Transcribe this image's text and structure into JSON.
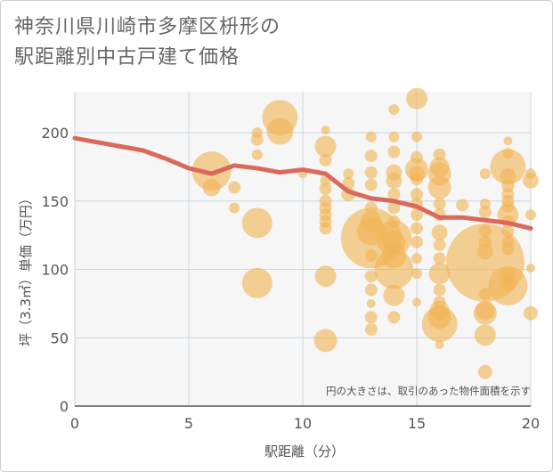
{
  "title": {
    "line1": "神奈川県川崎市多摩区枡形の",
    "line2": "駅距離別中古戸建て価格"
  },
  "note": "円の大きさは、取引のあった物件面積を示す",
  "chart_data": {
    "type": "scatter",
    "xlabel": "駅距離（分）",
    "ylabel": "坪（3.3㎡）単価（万円）",
    "xlim": [
      0,
      20
    ],
    "ylim": [
      0,
      230
    ],
    "xticks": [
      "0",
      "5",
      "10",
      "15",
      "20"
    ],
    "yticks": [
      "0",
      "50",
      "100",
      "150",
      "200"
    ],
    "grid": true,
    "colors": {
      "bubble": "#f0b455",
      "line": "#d9695a",
      "grid": "#c9d7e0",
      "plot_bg": "#f6f6f6"
    },
    "points": [
      {
        "x": 6,
        "y": 172,
        "s": 22
      },
      {
        "x": 6,
        "y": 160,
        "s": 10
      },
      {
        "x": 7,
        "y": 160,
        "s": 7
      },
      {
        "x": 7,
        "y": 145,
        "s": 6
      },
      {
        "x": 8,
        "y": 200,
        "s": 6
      },
      {
        "x": 8,
        "y": 195,
        "s": 7
      },
      {
        "x": 8,
        "y": 184,
        "s": 6
      },
      {
        "x": 8,
        "y": 134,
        "s": 17
      },
      {
        "x": 8,
        "y": 90,
        "s": 17
      },
      {
        "x": 9,
        "y": 211,
        "s": 20
      },
      {
        "x": 9,
        "y": 201,
        "s": 15
      },
      {
        "x": 10,
        "y": 170,
        "s": 5
      },
      {
        "x": 11,
        "y": 202,
        "s": 5
      },
      {
        "x": 11,
        "y": 190,
        "s": 12
      },
      {
        "x": 11,
        "y": 180,
        "s": 7
      },
      {
        "x": 11,
        "y": 165,
        "s": 6
      },
      {
        "x": 11,
        "y": 159,
        "s": 7
      },
      {
        "x": 11,
        "y": 150,
        "s": 7
      },
      {
        "x": 11,
        "y": 145,
        "s": 7
      },
      {
        "x": 11,
        "y": 140,
        "s": 7
      },
      {
        "x": 11,
        "y": 135,
        "s": 7
      },
      {
        "x": 11,
        "y": 130,
        "s": 7
      },
      {
        "x": 11,
        "y": 95,
        "s": 12
      },
      {
        "x": 11,
        "y": 48,
        "s": 13
      },
      {
        "x": 12,
        "y": 170,
        "s": 6
      },
      {
        "x": 12,
        "y": 163,
        "s": 7
      },
      {
        "x": 12,
        "y": 155,
        "s": 8
      },
      {
        "x": 13,
        "y": 197,
        "s": 6
      },
      {
        "x": 13,
        "y": 183,
        "s": 7
      },
      {
        "x": 13,
        "y": 171,
        "s": 7
      },
      {
        "x": 13,
        "y": 162,
        "s": 7
      },
      {
        "x": 13,
        "y": 145,
        "s": 7
      },
      {
        "x": 13,
        "y": 135,
        "s": 12
      },
      {
        "x": 13,
        "y": 128,
        "s": 16
      },
      {
        "x": 13,
        "y": 123,
        "s": 34
      },
      {
        "x": 13,
        "y": 110,
        "s": 7
      },
      {
        "x": 13,
        "y": 95,
        "s": 7
      },
      {
        "x": 13,
        "y": 85,
        "s": 7
      },
      {
        "x": 13,
        "y": 75,
        "s": 5
      },
      {
        "x": 13,
        "y": 65,
        "s": 7
      },
      {
        "x": 13,
        "y": 56,
        "s": 7
      },
      {
        "x": 14,
        "y": 217,
        "s": 6
      },
      {
        "x": 14,
        "y": 197,
        "s": 6
      },
      {
        "x": 14,
        "y": 186,
        "s": 7
      },
      {
        "x": 14,
        "y": 171,
        "s": 9
      },
      {
        "x": 14,
        "y": 165,
        "s": 9
      },
      {
        "x": 14,
        "y": 155,
        "s": 7
      },
      {
        "x": 14,
        "y": 145,
        "s": 7
      },
      {
        "x": 14,
        "y": 135,
        "s": 7
      },
      {
        "x": 14,
        "y": 123,
        "s": 20
      },
      {
        "x": 14,
        "y": 120,
        "s": 13
      },
      {
        "x": 14,
        "y": 110,
        "s": 14
      },
      {
        "x": 14,
        "y": 100,
        "s": 22
      },
      {
        "x": 14,
        "y": 81,
        "s": 12
      },
      {
        "x": 14,
        "y": 65,
        "s": 7
      },
      {
        "x": 15,
        "y": 225,
        "s": 12
      },
      {
        "x": 15,
        "y": 197,
        "s": 6
      },
      {
        "x": 15,
        "y": 182,
        "s": 7
      },
      {
        "x": 15,
        "y": 173,
        "s": 13
      },
      {
        "x": 15,
        "y": 170,
        "s": 9
      },
      {
        "x": 15,
        "y": 166,
        "s": 7
      },
      {
        "x": 15,
        "y": 155,
        "s": 7
      },
      {
        "x": 15,
        "y": 148,
        "s": 7
      },
      {
        "x": 15,
        "y": 140,
        "s": 7
      },
      {
        "x": 15,
        "y": 130,
        "s": 7
      },
      {
        "x": 15,
        "y": 120,
        "s": 7
      },
      {
        "x": 15,
        "y": 108,
        "s": 6
      },
      {
        "x": 15,
        "y": 97,
        "s": 6
      },
      {
        "x": 15,
        "y": 76,
        "s": 5
      },
      {
        "x": 16,
        "y": 184,
        "s": 7
      },
      {
        "x": 16,
        "y": 175,
        "s": 11
      },
      {
        "x": 16,
        "y": 170,
        "s": 13
      },
      {
        "x": 16,
        "y": 160,
        "s": 13
      },
      {
        "x": 16,
        "y": 148,
        "s": 7
      },
      {
        "x": 16,
        "y": 140,
        "s": 7
      },
      {
        "x": 16,
        "y": 127,
        "s": 9
      },
      {
        "x": 16,
        "y": 118,
        "s": 7
      },
      {
        "x": 16,
        "y": 108,
        "s": 7
      },
      {
        "x": 16,
        "y": 97,
        "s": 12
      },
      {
        "x": 16,
        "y": 85,
        "s": 7
      },
      {
        "x": 16,
        "y": 76,
        "s": 7
      },
      {
        "x": 16,
        "y": 70,
        "s": 11
      },
      {
        "x": 16,
        "y": 65,
        "s": 13
      },
      {
        "x": 16,
        "y": 60,
        "s": 20
      },
      {
        "x": 16,
        "y": 45,
        "s": 5
      },
      {
        "x": 17,
        "y": 147,
        "s": 7
      },
      {
        "x": 18,
        "y": 170,
        "s": 6
      },
      {
        "x": 18,
        "y": 148,
        "s": 6
      },
      {
        "x": 18,
        "y": 142,
        "s": 7
      },
      {
        "x": 18,
        "y": 128,
        "s": 7
      },
      {
        "x": 18,
        "y": 120,
        "s": 7
      },
      {
        "x": 18,
        "y": 113,
        "s": 9
      },
      {
        "x": 18,
        "y": 105,
        "s": 44
      },
      {
        "x": 18,
        "y": 82,
        "s": 7
      },
      {
        "x": 18,
        "y": 70,
        "s": 11
      },
      {
        "x": 18,
        "y": 68,
        "s": 13
      },
      {
        "x": 18,
        "y": 52,
        "s": 12
      },
      {
        "x": 18,
        "y": 25,
        "s": 8
      },
      {
        "x": 19,
        "y": 194,
        "s": 5
      },
      {
        "x": 19,
        "y": 185,
        "s": 6
      },
      {
        "x": 19,
        "y": 175,
        "s": 20
      },
      {
        "x": 19,
        "y": 168,
        "s": 9
      },
      {
        "x": 19,
        "y": 161,
        "s": 7
      },
      {
        "x": 19,
        "y": 155,
        "s": 7
      },
      {
        "x": 19,
        "y": 150,
        "s": 7
      },
      {
        "x": 19,
        "y": 146,
        "s": 7
      },
      {
        "x": 19,
        "y": 140,
        "s": 12
      },
      {
        "x": 19,
        "y": 135,
        "s": 7
      },
      {
        "x": 19,
        "y": 128,
        "s": 7
      },
      {
        "x": 19,
        "y": 120,
        "s": 7
      },
      {
        "x": 19,
        "y": 115,
        "s": 7
      },
      {
        "x": 19,
        "y": 95,
        "s": 9
      },
      {
        "x": 19,
        "y": 90,
        "s": 9
      },
      {
        "x": 19,
        "y": 88,
        "s": 22
      },
      {
        "x": 20,
        "y": 170,
        "s": 6
      },
      {
        "x": 20,
        "y": 165,
        "s": 9
      },
      {
        "x": 20,
        "y": 140,
        "s": 6
      },
      {
        "x": 20,
        "y": 101,
        "s": 5
      },
      {
        "x": 20,
        "y": 68,
        "s": 8
      }
    ],
    "trend": {
      "x": [
        0,
        1,
        2,
        3,
        4,
        5,
        6,
        7,
        8,
        9,
        10,
        11,
        12,
        13,
        14,
        15,
        16,
        17,
        18,
        19,
        20
      ],
      "y": [
        196,
        193,
        190,
        187,
        181,
        174,
        170,
        176,
        174,
        171,
        173,
        170,
        157,
        152,
        150,
        146,
        138,
        138,
        136,
        134,
        130
      ]
    }
  }
}
